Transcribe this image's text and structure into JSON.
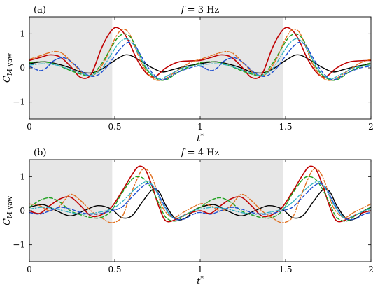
{
  "chart_data": [
    {
      "type": "line",
      "panel_label": "(a)",
      "title_var": "f",
      "title_value": " = 3 Hz",
      "ylabel_main": "C",
      "ylabel_sub": "M-yaw",
      "xlabel_main": "t",
      "xlabel_sup": "*",
      "xlim": [
        0,
        2
      ],
      "ylim": [
        -1.5,
        1.5
      ],
      "xticks": [
        {
          "value": 0,
          "label": "0"
        },
        {
          "value": 0.5,
          "label": "0.5"
        },
        {
          "value": 1,
          "label": "1"
        },
        {
          "value": 1.5,
          "label": "1.5"
        },
        {
          "value": 2,
          "label": "2"
        }
      ],
      "yticks": [
        {
          "value": -1,
          "label": "−1"
        },
        {
          "value": 0,
          "label": "0"
        },
        {
          "value": 1,
          "label": "1"
        }
      ],
      "grid": false,
      "shaded_intervals": [
        [
          0,
          0.485
        ],
        [
          1,
          1.485
        ]
      ],
      "shade_color": "#e6e6e6",
      "series": [
        {
          "color": "#000000",
          "dash": "solid",
          "width": 1.4,
          "x": [
            0,
            0.08,
            0.16,
            0.24,
            0.3,
            0.36,
            0.42,
            0.48,
            0.52,
            0.56,
            0.6,
            0.66,
            0.72,
            0.78,
            0.84,
            0.92,
            1.0
          ],
          "y": [
            0.12,
            0.18,
            0.12,
            0.0,
            -0.12,
            -0.15,
            -0.05,
            0.15,
            0.28,
            0.38,
            0.35,
            0.18,
            0.0,
            -0.12,
            -0.05,
            0.05,
            0.12
          ]
        },
        {
          "color": "#c00000",
          "dash": "solid",
          "width": 1.6,
          "x": [
            0,
            0.06,
            0.12,
            0.18,
            0.24,
            0.3,
            0.36,
            0.42,
            0.46,
            0.5,
            0.54,
            0.58,
            0.62,
            0.66,
            0.7,
            0.74,
            0.8,
            0.88,
            1.0
          ],
          "y": [
            0.22,
            0.3,
            0.38,
            0.32,
            0.05,
            -0.28,
            -0.2,
            0.55,
            0.95,
            1.18,
            1.1,
            0.8,
            0.35,
            0.0,
            -0.22,
            -0.25,
            0.0,
            0.18,
            0.22
          ]
        },
        {
          "color": "#e07020",
          "dash": "dashdot",
          "width": 1.4,
          "x": [
            0,
            0.06,
            0.12,
            0.16,
            0.2,
            0.26,
            0.32,
            0.38,
            0.44,
            0.5,
            0.54,
            0.58,
            0.62,
            0.66,
            0.72,
            0.78,
            0.86,
            0.94,
            1.0
          ],
          "y": [
            0.25,
            0.35,
            0.45,
            0.48,
            0.4,
            0.1,
            -0.18,
            -0.2,
            0.2,
            0.85,
            1.12,
            1.05,
            0.6,
            0.1,
            -0.3,
            -0.35,
            -0.1,
            0.15,
            0.25
          ]
        },
        {
          "color": "#20a020",
          "dash": "dashed",
          "width": 1.4,
          "x": [
            0,
            0.06,
            0.12,
            0.18,
            0.24,
            0.3,
            0.36,
            0.42,
            0.48,
            0.52,
            0.56,
            0.6,
            0.64,
            0.68,
            0.74,
            0.8,
            0.88,
            0.96,
            1.0
          ],
          "y": [
            0.15,
            0.18,
            0.15,
            0.05,
            -0.08,
            -0.18,
            -0.22,
            0.1,
            0.6,
            0.9,
            1.0,
            0.85,
            0.45,
            0.0,
            -0.3,
            -0.35,
            -0.1,
            0.08,
            0.15
          ]
        },
        {
          "color": "#2050d0",
          "dash": "dashed",
          "width": 1.4,
          "x": [
            0,
            0.06,
            0.1,
            0.14,
            0.2,
            0.26,
            0.32,
            0.38,
            0.44,
            0.5,
            0.54,
            0.58,
            0.62,
            0.66,
            0.72,
            0.78,
            0.86,
            0.94,
            1.0
          ],
          "y": [
            0.05,
            -0.08,
            0.0,
            0.2,
            0.3,
            0.12,
            -0.15,
            -0.25,
            -0.05,
            0.35,
            0.6,
            0.75,
            0.65,
            0.3,
            -0.15,
            -0.35,
            -0.15,
            0.0,
            0.05
          ]
        },
        {
          "color": "#30b0c0",
          "dash": "dashdot",
          "width": 1.3,
          "x": [
            0,
            0.08,
            0.16,
            0.24,
            0.3,
            0.36,
            0.42,
            0.48,
            0.52,
            0.56,
            0.6,
            0.64,
            0.7,
            0.76,
            0.82,
            0.9,
            1.0
          ],
          "y": [
            0.08,
            0.12,
            0.08,
            -0.05,
            -0.15,
            -0.22,
            -0.05,
            0.4,
            0.7,
            0.85,
            0.75,
            0.4,
            -0.1,
            -0.32,
            -0.2,
            0.0,
            0.08
          ]
        }
      ]
    },
    {
      "type": "line",
      "panel_label": "(b)",
      "title_var": "f",
      "title_value": " = 4 Hz",
      "ylabel_main": "C",
      "ylabel_sub": "M-yaw",
      "xlabel_main": "t",
      "xlabel_sup": "*",
      "xlim": [
        0,
        2
      ],
      "ylim": [
        -1.5,
        1.5
      ],
      "xticks": [
        {
          "value": 0,
          "label": "0"
        },
        {
          "value": 0.5,
          "label": "0.5"
        },
        {
          "value": 1,
          "label": "1"
        },
        {
          "value": 1.5,
          "label": "1.5"
        },
        {
          "value": 2,
          "label": "2"
        }
      ],
      "yticks": [
        {
          "value": -1,
          "label": "−1"
        },
        {
          "value": 0,
          "label": "0"
        },
        {
          "value": 1,
          "label": "1"
        }
      ],
      "grid": false,
      "shaded_intervals": [
        [
          0,
          0.485
        ],
        [
          1,
          1.485
        ]
      ],
      "shade_color": "#e6e6e6",
      "series": [
        {
          "color": "#000000",
          "dash": "solid",
          "width": 1.4,
          "x": [
            0,
            0.08,
            0.16,
            0.24,
            0.32,
            0.4,
            0.48,
            0.54,
            0.6,
            0.66,
            0.72,
            0.76,
            0.8,
            0.86,
            0.92,
            0.96,
            1.0
          ],
          "y": [
            0.1,
            0.18,
            0.0,
            -0.15,
            0.0,
            0.15,
            0.05,
            -0.2,
            -0.15,
            0.25,
            0.62,
            0.55,
            0.15,
            -0.25,
            -0.2,
            0.0,
            0.1
          ]
        },
        {
          "color": "#c00000",
          "dash": "solid",
          "width": 1.6,
          "x": [
            0,
            0.06,
            0.12,
            0.18,
            0.24,
            0.3,
            0.36,
            0.42,
            0.48,
            0.54,
            0.6,
            0.64,
            0.68,
            0.72,
            0.76,
            0.8,
            0.86,
            0.92,
            1.0
          ],
          "y": [
            0.0,
            -0.08,
            0.15,
            0.35,
            0.4,
            0.15,
            -0.15,
            -0.12,
            0.1,
            0.55,
            1.05,
            1.3,
            1.2,
            0.7,
            0.1,
            -0.3,
            -0.25,
            -0.1,
            0.0
          ]
        },
        {
          "color": "#e07020",
          "dash": "dashdot",
          "width": 1.4,
          "x": [
            0,
            0.06,
            0.12,
            0.18,
            0.24,
            0.3,
            0.36,
            0.42,
            0.48,
            0.54,
            0.58,
            0.62,
            0.66,
            0.7,
            0.74,
            0.78,
            0.84,
            0.9,
            1.0
          ],
          "y": [
            0.2,
            0.15,
            0.0,
            0.15,
            0.48,
            0.3,
            0.0,
            -0.2,
            -0.35,
            -0.2,
            0.3,
            0.8,
            1.2,
            1.15,
            0.7,
            0.1,
            -0.2,
            -0.05,
            0.2
          ]
        },
        {
          "color": "#20a020",
          "dash": "dashed",
          "width": 1.4,
          "x": [
            0,
            0.06,
            0.12,
            0.18,
            0.24,
            0.3,
            0.36,
            0.42,
            0.48,
            0.54,
            0.6,
            0.64,
            0.68,
            0.72,
            0.76,
            0.8,
            0.86,
            0.92,
            1.0
          ],
          "y": [
            0.1,
            0.3,
            0.38,
            0.25,
            0.0,
            -0.12,
            -0.2,
            -0.2,
            0.0,
            0.5,
            0.92,
            1.0,
            0.9,
            0.6,
            0.2,
            -0.2,
            -0.3,
            -0.1,
            0.1
          ]
        },
        {
          "color": "#2050d0",
          "dash": "dashed",
          "width": 1.4,
          "x": [
            0,
            0.06,
            0.12,
            0.18,
            0.24,
            0.3,
            0.36,
            0.42,
            0.48,
            0.54,
            0.6,
            0.66,
            0.7,
            0.74,
            0.78,
            0.84,
            0.9,
            0.96,
            1.0
          ],
          "y": [
            -0.05,
            -0.1,
            0.0,
            0.1,
            0.05,
            -0.05,
            -0.1,
            -0.08,
            0.0,
            0.1,
            0.4,
            0.7,
            0.8,
            0.65,
            0.25,
            -0.2,
            -0.25,
            -0.1,
            -0.05
          ]
        },
        {
          "color": "#30b0c0",
          "dash": "dashdot",
          "width": 1.3,
          "x": [
            0,
            0.08,
            0.16,
            0.24,
            0.32,
            0.4,
            0.48,
            0.54,
            0.6,
            0.66,
            0.7,
            0.74,
            0.78,
            0.84,
            0.9,
            0.96,
            1.0
          ],
          "y": [
            0.05,
            0.1,
            0.05,
            -0.05,
            -0.1,
            -0.05,
            0.05,
            0.25,
            0.55,
            0.8,
            0.85,
            0.6,
            0.2,
            -0.2,
            -0.15,
            0.0,
            0.05
          ]
        }
      ]
    }
  ]
}
